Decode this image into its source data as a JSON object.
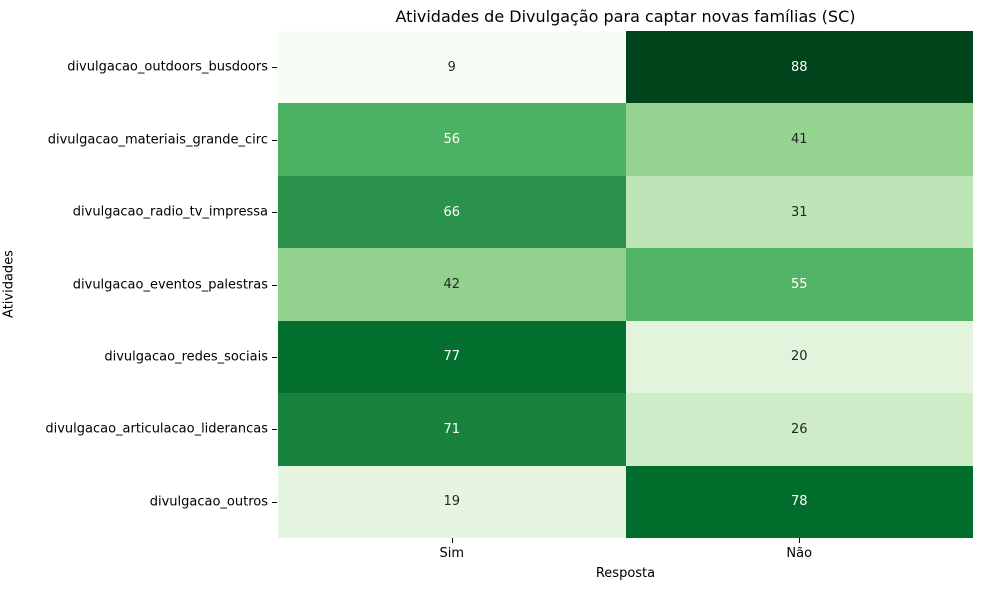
{
  "chart_data": {
    "type": "heatmap",
    "title": "Atividades de Divulgação para captar novas famílias (SC)",
    "xlabel": "Resposta",
    "ylabel": "Atividades",
    "columns": [
      "Sim",
      "Não"
    ],
    "rows": [
      "divulgacao_outdoors_busdoors",
      "divulgacao_materiais_grande_circ",
      "divulgacao_radio_tv_impressa",
      "divulgacao_eventos_palestras",
      "divulgacao_redes_sociais",
      "divulgacao_articulacao_liderancas",
      "divulgacao_outros"
    ],
    "values": [
      [
        9,
        88
      ],
      [
        56,
        41
      ],
      [
        66,
        31
      ],
      [
        42,
        55
      ],
      [
        77,
        20
      ],
      [
        71,
        26
      ],
      [
        19,
        78
      ]
    ],
    "colormap": "Greens",
    "vmin": 9,
    "vmax": 88,
    "grid": false,
    "legend": "none",
    "cell_colors": [
      [
        "#f7fcf5",
        "#00441b"
      ],
      [
        "#4db163",
        "#96d492"
      ],
      [
        "#2a924a",
        "#bee5b8"
      ],
      [
        "#92d28e",
        "#52b466"
      ],
      [
        "#04702f",
        "#e2f4dc"
      ],
      [
        "#19833e",
        "#cfecc9"
      ],
      [
        "#e5f5e0",
        "#006d2c"
      ]
    ],
    "cell_text_colors": [
      [
        "#262626",
        "#ffffff"
      ],
      [
        "#ffffff",
        "#262626"
      ],
      [
        "#ffffff",
        "#262626"
      ],
      [
        "#262626",
        "#ffffff"
      ],
      [
        "#ffffff",
        "#262626"
      ],
      [
        "#ffffff",
        "#262626"
      ],
      [
        "#262626",
        "#ffffff"
      ]
    ],
    "background_color": "#ffffff",
    "tick_color": "#000000",
    "title_color": "#000000"
  }
}
